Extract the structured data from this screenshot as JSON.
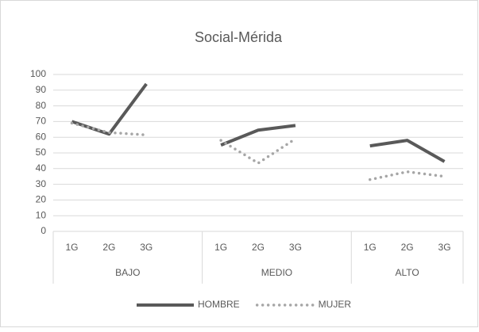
{
  "chart_data": {
    "type": "line",
    "title": "Social-Mérida",
    "categories": [
      "1G",
      "2G",
      "3G",
      null,
      "1G",
      "2G",
      "3G",
      null,
      "1G",
      "2G",
      "3G"
    ],
    "groups": [
      "BAJO",
      "MEDIO",
      "ALTO"
    ],
    "series": [
      {
        "name": "HOMBRE",
        "color": "#595959",
        "style": "solid",
        "values": [
          70,
          62,
          94,
          null,
          55,
          64.5,
          67.5,
          null,
          54.5,
          58,
          44.5
        ]
      },
      {
        "name": "MUJER",
        "color": "#a6a6a6",
        "style": "dotted",
        "values": [
          69,
          63,
          61.5,
          null,
          58,
          43.5,
          59,
          null,
          33,
          38,
          35
        ]
      }
    ],
    "ylim": [
      0,
      100
    ],
    "yticks": [
      0,
      10,
      20,
      30,
      40,
      50,
      60,
      70,
      80,
      90,
      100
    ],
    "grid": true,
    "legend": "bottom"
  }
}
